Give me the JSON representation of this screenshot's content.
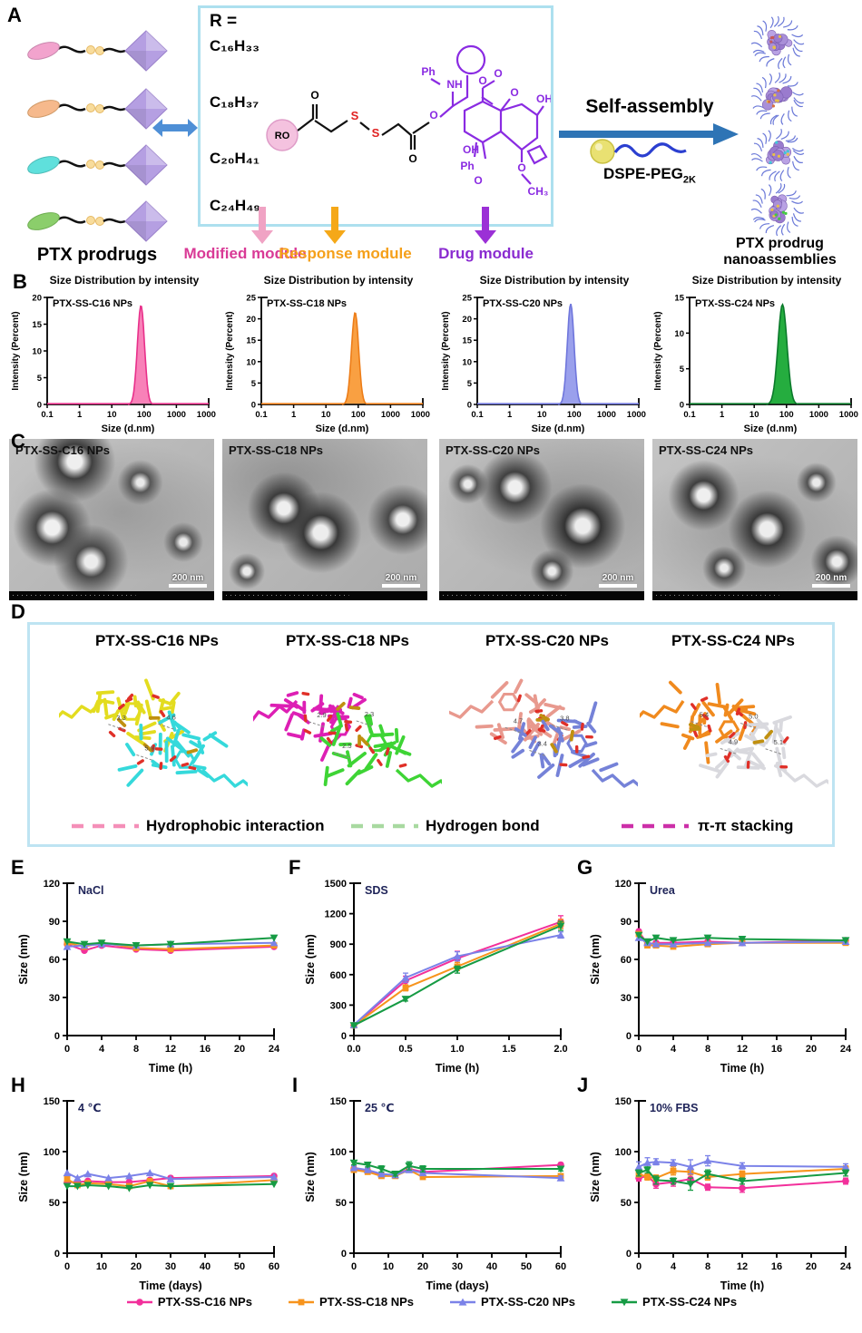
{
  "labels": {
    "a": "A",
    "b": "B",
    "c": "C",
    "d": "D",
    "e": "E",
    "f": "F",
    "g": "G",
    "h": "H",
    "i": "I",
    "j": "J"
  },
  "panel_a": {
    "prodrugs_label": "PTX prodrugs",
    "prodrug_colors": [
      "#F2A3CD",
      "#F6B98C",
      "#5FE0DC",
      "#8BCE6B"
    ],
    "r_box": {
      "title": "R =",
      "formulas": [
        "C₁₆H₃₃",
        "C₁₈H₃₇",
        "C₂₀H₄₁",
        "C₂₄H₄₉"
      ]
    },
    "structure_labels": {
      "ro": "RO",
      "o1": "O",
      "s1": "S",
      "s2": "S",
      "o2": "O",
      "o3": "O",
      "ph1": "Ph",
      "nh": "NH",
      "o4": "O",
      "o5": "O",
      "o6": "O",
      "oh1": "OH",
      "oh2": "OH",
      "ph2": "Ph",
      "o7": "O",
      "o8": "O",
      "ch3": "CH₃"
    },
    "modules": [
      {
        "label": "Modified module",
        "color": "#D93A96",
        "arrow_color": "#F0A3C4"
      },
      {
        "label": "Response module",
        "color": "#F5A01A",
        "arrow_color": "#F5A818"
      },
      {
        "label": "Drug module",
        "color": "#8A2BD0",
        "arrow_color": "#9B30D6"
      }
    ],
    "self_assembly_label": "Self-assembly",
    "dspe_label": {
      "base": "DSPE-PEG",
      "sub": "2K"
    },
    "nanoassemblies_line1": "PTX prodrug",
    "nanoassemblies_line2": "nanoassemblies"
  },
  "panel_c": {
    "tems": [
      {
        "label": "PTX-SS-C16 NPs",
        "scale": "200 nm"
      },
      {
        "label": "PTX-SS-C18 NPs",
        "scale": "200 nm"
      },
      {
        "label": "PTX-SS-C20 NPs",
        "scale": "200 nm"
      },
      {
        "label": "PTX-SS-C24 NPs",
        "scale": "200 nm"
      }
    ]
  },
  "panel_d": {
    "items": [
      {
        "title": "PTX-SS-C16 NPs",
        "colors": [
          "#E3DC1F",
          "#35D9DB"
        ],
        "annotations": [
          "3.3",
          "5.9",
          "4.6"
        ]
      },
      {
        "title": "PTX-SS-C18 NPs",
        "colors": [
          "#DD1FB4",
          "#3ED435"
        ],
        "annotations": [
          "2.9",
          "2.5",
          "2.3"
        ]
      },
      {
        "title": "PTX-SS-C20 NPs",
        "colors": [
          "#E8998E",
          "#7582D8"
        ],
        "annotations": [
          "4.7",
          "3.4",
          "3.8"
        ]
      },
      {
        "title": "PTX-SS-C24 NPs",
        "colors": [
          "#F08A1E",
          "#D9D9DE"
        ],
        "annotations": [
          "5.4",
          "4.9",
          "5.0",
          "5.1"
        ]
      }
    ],
    "legend": [
      {
        "label": "Hydrophobic interaction",
        "color": "#F48FB8"
      },
      {
        "label": "Hydrogen bond",
        "color": "#A8D9A0"
      },
      {
        "label": "π-π stacking",
        "color": "#CC2FA8"
      }
    ]
  },
  "series_meta": [
    {
      "name": "PTX-SS-C16 NPs",
      "color": "#F2309B",
      "marker": "circle"
    },
    {
      "name": "PTX-SS-C18 NPs",
      "color": "#F7941D",
      "marker": "square"
    },
    {
      "name": "PTX-SS-C20 NPs",
      "color": "#7B82E8",
      "marker": "triangle-up"
    },
    {
      "name": "PTX-SS-C24 NPs",
      "color": "#169B44",
      "marker": "triangle-down"
    }
  ],
  "chart_data": [
    {
      "type": "dls",
      "title": "Size Distribution by intensity",
      "label": "PTX-SS-C16 NPs",
      "xlabel": "Size (d.nm)",
      "ylabel": "Intensity (Percent)",
      "xticks": [
        "0.1",
        "1",
        "10",
        "100",
        "1000",
        "10000"
      ],
      "yticks": [
        0,
        5,
        10,
        15,
        20
      ],
      "ymax": 20,
      "peak": {
        "center": 80,
        "height": 18.5,
        "sigma": 0.11
      },
      "fill": "#F881B8",
      "stroke": "#E8308A"
    },
    {
      "type": "dls",
      "title": "Size Distribution by intensity",
      "label": "PTX-SS-C18 NPs",
      "xlabel": "Size (d.nm)",
      "ylabel": "Intensity (Percent)",
      "xticks": [
        "0.1",
        "1",
        "10",
        "100",
        "1000",
        "10000"
      ],
      "yticks": [
        0,
        5,
        10,
        15,
        20,
        25
      ],
      "ymax": 25,
      "peak": {
        "center": 80,
        "height": 21.5,
        "sigma": 0.11
      },
      "fill": "#F9A042",
      "stroke": "#ED7D18"
    },
    {
      "type": "dls",
      "title": "Size Distribution by intensity",
      "label": "PTX-SS-C20 NPs",
      "xlabel": "Size (d.nm)",
      "ylabel": "Intensity (Percent)",
      "xticks": [
        "0.1",
        "1",
        "10",
        "100",
        "1000",
        "10000"
      ],
      "yticks": [
        0,
        5,
        10,
        15,
        20,
        25
      ],
      "ymax": 25,
      "peak": {
        "center": 78,
        "height": 23.5,
        "sigma": 0.105
      },
      "fill": "#9AA0EC",
      "stroke": "#6F76DC"
    },
    {
      "type": "dls",
      "title": "Size Distribution by intensity",
      "label": "PTX-SS-C24 NPs",
      "xlabel": "Size (d.nm)",
      "ylabel": "Intensity (Percent)",
      "xticks": [
        "0.1",
        "1",
        "10",
        "100",
        "1000",
        "10000"
      ],
      "yticks": [
        0,
        5,
        10,
        15
      ],
      "ymax": 15,
      "peak": {
        "center": 75,
        "height": 14,
        "sigma": 0.14
      },
      "fill": "#25AD3F",
      "stroke": "#0B7A2B"
    },
    {
      "type": "line",
      "annotation": "NaCl",
      "xlabel": "Time (h)",
      "ylabel": "Size (nm)",
      "xmax": 24,
      "xticks": [
        0,
        4,
        8,
        12,
        16,
        20,
        24
      ],
      "xtick_labels": [
        "0",
        "4",
        "8",
        "12",
        "16",
        "20",
        "24"
      ],
      "ymax": 120,
      "yticks": [
        0,
        30,
        60,
        90,
        120
      ],
      "x": [
        0,
        2,
        4,
        8,
        12,
        24
      ],
      "series": [
        [
          72,
          67,
          71,
          68,
          67,
          70
        ],
        [
          73,
          70,
          73,
          69,
          68,
          71
        ],
        [
          70,
          71,
          72,
          71,
          72,
          73
        ],
        [
          74,
          72,
          73,
          71,
          72,
          77
        ]
      ]
    },
    {
      "type": "line",
      "annotation": "SDS",
      "xlabel": "Time (h)",
      "ylabel": "Size (nm)",
      "xmax": 2,
      "xticks": [
        0,
        0.5,
        1,
        1.5,
        2
      ],
      "xtick_labels": [
        "0.0",
        "0.5",
        "1.0",
        "1.5",
        "2.0"
      ],
      "ymax": 1500,
      "yticks": [
        0,
        300,
        600,
        900,
        1200,
        1500
      ],
      "x": [
        0,
        0.5,
        1,
        2
      ],
      "series": [
        [
          100,
          540,
          760,
          1120
        ],
        [
          100,
          470,
          680,
          1100
        ],
        [
          105,
          570,
          780,
          990
        ],
        [
          100,
          360,
          650,
          1080
        ]
      ],
      "errors": [
        [
          8,
          45,
          70,
          60
        ],
        [
          8,
          30,
          40,
          45
        ],
        [
          8,
          45,
          45,
          30
        ],
        [
          8,
          20,
          35,
          45
        ]
      ]
    },
    {
      "type": "line",
      "annotation": "Urea",
      "xlabel": "Time (h)",
      "ylabel": "Size (nm)",
      "xmax": 24,
      "xticks": [
        0,
        4,
        8,
        12,
        16,
        20,
        24
      ],
      "xtick_labels": [
        "0",
        "4",
        "8",
        "12",
        "16",
        "20",
        "24"
      ],
      "ymax": 120,
      "yticks": [
        0,
        30,
        60,
        90,
        120
      ],
      "x": [
        0,
        1,
        2,
        4,
        8,
        12,
        24
      ],
      "series": [
        [
          82,
          72,
          73,
          73,
          74,
          73,
          75
        ],
        [
          80,
          71,
          71,
          70,
          72,
          73,
          73
        ],
        [
          77,
          73,
          72,
          72,
          73,
          73,
          74
        ],
        [
          79,
          74,
          77,
          75,
          77,
          76,
          75
        ]
      ]
    },
    {
      "type": "line",
      "annotation": "4 ℃",
      "xlabel": "Time (days)",
      "ylabel": "Size (nm)",
      "xmax": 60,
      "xticks": [
        0,
        10,
        20,
        30,
        40,
        50,
        60
      ],
      "xtick_labels": [
        "0",
        "10",
        "20",
        "30",
        "40",
        "50",
        "60"
      ],
      "ymax": 150,
      "yticks": [
        0,
        50,
        100,
        150
      ],
      "x": [
        0,
        3,
        6,
        12,
        18,
        24,
        30,
        60
      ],
      "series": [
        [
          70,
          70,
          71,
          70,
          70,
          72,
          74,
          76
        ],
        [
          73,
          67,
          69,
          68,
          66,
          71,
          66,
          72
        ],
        [
          79,
          74,
          78,
          74,
          76,
          79,
          73,
          75
        ],
        [
          66,
          66,
          67,
          66,
          64,
          67,
          66,
          68
        ]
      ]
    },
    {
      "type": "line",
      "annotation": "25 ℃",
      "xlabel": "Time (days)",
      "ylabel": "Size (nm)",
      "xmax": 60,
      "xticks": [
        0,
        10,
        20,
        30,
        40,
        50,
        60
      ],
      "xtick_labels": [
        "0",
        "10",
        "20",
        "30",
        "40",
        "50",
        "60"
      ],
      "ymax": 150,
      "yticks": [
        0,
        50,
        100,
        150
      ],
      "x": [
        0,
        4,
        8,
        12,
        16,
        20,
        60
      ],
      "series": [
        [
          83,
          81,
          77,
          77,
          83,
          80,
          87
        ],
        [
          82,
          80,
          76,
          76,
          82,
          75,
          76
        ],
        [
          84,
          82,
          78,
          77,
          82,
          79,
          74
        ],
        [
          89,
          87,
          83,
          78,
          86,
          83,
          83
        ]
      ],
      "errors": [
        [
          2,
          2,
          2,
          2,
          2,
          2,
          2
        ],
        [
          2,
          2,
          2,
          2,
          2,
          2,
          2
        ],
        [
          2,
          2,
          2,
          2,
          2,
          2,
          2
        ],
        [
          2,
          2,
          3,
          2,
          4,
          3,
          2
        ]
      ]
    },
    {
      "type": "line",
      "annotation": "10% FBS",
      "xlabel": "Time (h)",
      "ylabel": "Size (nm)",
      "xmax": 24,
      "xticks": [
        0,
        4,
        8,
        12,
        16,
        20,
        24
      ],
      "xtick_labels": [
        "0",
        "4",
        "8",
        "12",
        "16",
        "20",
        "24"
      ],
      "ymax": 150,
      "yticks": [
        0,
        50,
        100,
        150
      ],
      "x": [
        0,
        1,
        2,
        4,
        6,
        8,
        12,
        24
      ],
      "series": [
        [
          74,
          76,
          68,
          70,
          73,
          65,
          64,
          71
        ],
        [
          78,
          75,
          74,
          81,
          80,
          75,
          78,
          83
        ],
        [
          85,
          89,
          90,
          89,
          85,
          91,
          86,
          85
        ],
        [
          79,
          82,
          72,
          71,
          68,
          78,
          71,
          79
        ]
      ],
      "errors": [
        [
          3,
          3,
          4,
          4,
          5,
          3,
          4,
          3
        ],
        [
          3,
          3,
          3,
          4,
          3,
          3,
          3,
          3
        ],
        [
          5,
          5,
          3,
          3,
          7,
          5,
          3,
          3
        ],
        [
          3,
          3,
          4,
          3,
          6,
          4,
          3,
          3
        ]
      ]
    }
  ]
}
